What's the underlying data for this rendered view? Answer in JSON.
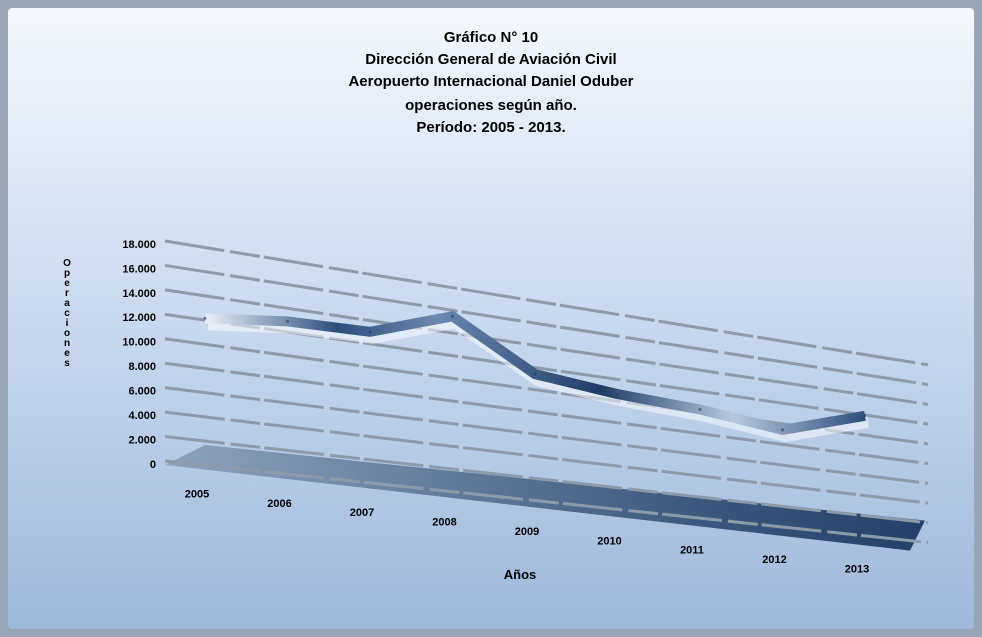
{
  "chart_data": {
    "type": "line",
    "title": [
      "Gráfico N° 10",
      "Dirección General de Aviación Civil",
      "Aeropuerto Internacional Daniel Oduber",
      "operaciones según año.",
      "Período: 2005 - 2013."
    ],
    "y_label": "Operaciones",
    "x_label": "Años",
    "categories": [
      "2005",
      "2006",
      "2007",
      "2008",
      "2009",
      "2010",
      "2011",
      "2012",
      "2013"
    ],
    "values": [
      12500,
      13300,
      13500,
      16000,
      12000,
      11300,
      11000,
      10200,
      12800
    ],
    "ylim": [
      0,
      18000
    ],
    "yticks": [
      0,
      {
        "value": 2000,
        "label": "2.000"
      },
      {
        "value": 4000,
        "label": "4.000"
      },
      {
        "value": 6000,
        "label": "6.000"
      },
      {
        "value": 8000,
        "label": "8.000"
      },
      {
        "value": 10000,
        "label": "10.000"
      },
      {
        "value": 12000,
        "label": "12.000"
      },
      {
        "value": 14000,
        "label": "14.000"
      },
      {
        "value": 16000,
        "label": "16.000"
      },
      {
        "value": 18000,
        "label": "18.000"
      }
    ],
    "grid": true
  }
}
